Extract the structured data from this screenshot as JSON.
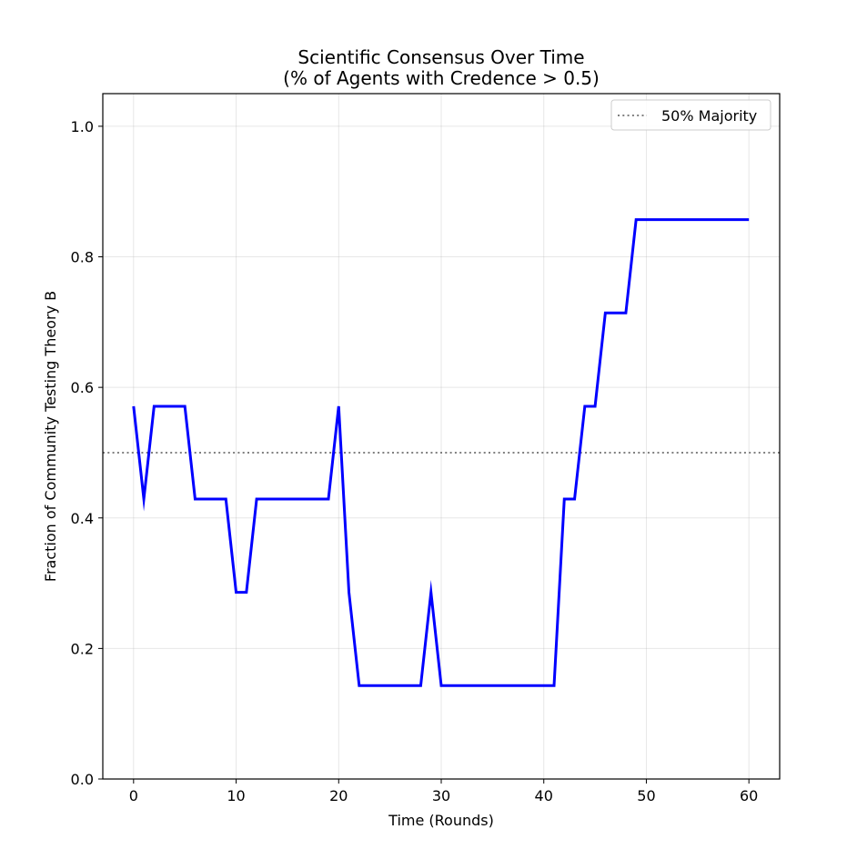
{
  "chart_data": {
    "type": "line",
    "title": "Scientific Consensus Over Time",
    "subtitle": "(% of Agents with Credence > 0.5)",
    "xlabel": "Time (Rounds)",
    "ylabel": "Fraction of Community Testing Theory B",
    "xlim": [
      -3,
      63
    ],
    "ylim": [
      0,
      1.05
    ],
    "xticks": [
      0,
      10,
      20,
      30,
      40,
      50,
      60
    ],
    "yticks": [
      0.0,
      0.2,
      0.4,
      0.6,
      0.8,
      1.0
    ],
    "xtick_labels": [
      "0",
      "10",
      "20",
      "30",
      "40",
      "50",
      "60"
    ],
    "ytick_labels": [
      "0.0",
      "0.2",
      "0.4",
      "0.6",
      "0.8",
      "1.0"
    ],
    "grid": true,
    "legend_position": "top-right",
    "series": [
      {
        "color": "#0000ff",
        "x": [
          0,
          1,
          2,
          3,
          4,
          5,
          6,
          7,
          8,
          9,
          10,
          11,
          12,
          13,
          14,
          15,
          16,
          17,
          18,
          19,
          20,
          21,
          22,
          23,
          24,
          25,
          26,
          27,
          28,
          29,
          30,
          31,
          32,
          33,
          34,
          35,
          36,
          37,
          38,
          39,
          40,
          41,
          42,
          43,
          44,
          45,
          46,
          47,
          48,
          49,
          50,
          51,
          52,
          53,
          54,
          55,
          56,
          57,
          58,
          59,
          60
        ],
        "values": [
          0.571,
          0.429,
          0.571,
          0.571,
          0.571,
          0.571,
          0.429,
          0.429,
          0.429,
          0.429,
          0.286,
          0.286,
          0.429,
          0.429,
          0.429,
          0.429,
          0.429,
          0.429,
          0.429,
          0.429,
          0.571,
          0.286,
          0.143,
          0.143,
          0.143,
          0.143,
          0.143,
          0.143,
          0.143,
          0.286,
          0.143,
          0.143,
          0.143,
          0.143,
          0.143,
          0.143,
          0.143,
          0.143,
          0.143,
          0.143,
          0.143,
          0.143,
          0.429,
          0.429,
          0.571,
          0.571,
          0.714,
          0.714,
          0.714,
          0.857,
          0.857,
          0.857,
          0.857,
          0.857,
          0.857,
          0.857,
          0.857,
          0.857,
          0.857,
          0.857,
          0.857
        ]
      }
    ],
    "reference_line": {
      "name": "50% Majority",
      "y": 0.5,
      "color": "#808080",
      "style": "dotted"
    }
  }
}
